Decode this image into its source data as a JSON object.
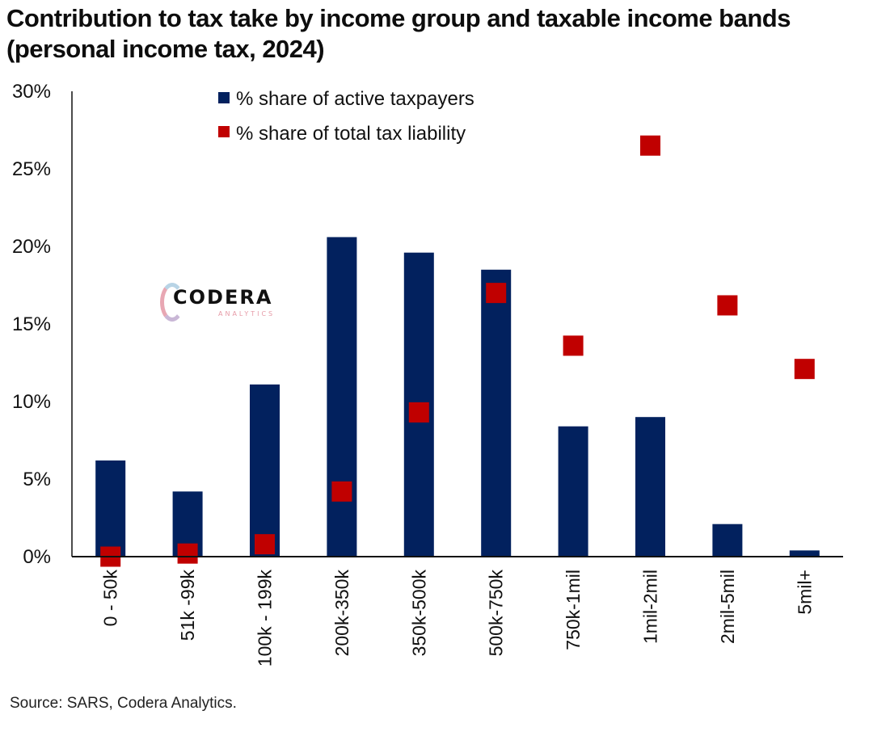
{
  "title": "Contribution to tax take by income group and taxable income bands (personal income tax, 2024)",
  "source": "Source: SARS, Codera Analytics.",
  "logo": {
    "name": "CODERA",
    "sub": "ANALYTICS"
  },
  "colors": {
    "bar": "#02215e",
    "marker": "#c00000",
    "axis": "#111111"
  },
  "chart_data": {
    "type": "bar",
    "title": "Contribution to tax take by income group and taxable income bands (personal income tax, 2024)",
    "xlabel": "",
    "ylabel": "",
    "ylim": [
      0,
      30
    ],
    "yticks": [
      0,
      5,
      10,
      15,
      20,
      25,
      30
    ],
    "ytick_labels": [
      "0%",
      "5%",
      "10%",
      "15%",
      "20%",
      "25%",
      "30%"
    ],
    "grid": false,
    "legend_position": "top-center",
    "categories": [
      "0 - 50k",
      "51k -99k",
      "100k - 199k",
      "200k-350k",
      "350k-500k",
      "500k-750k",
      "750k-1mil",
      "1mil-2mil",
      "2mil-5mil",
      "5mil+"
    ],
    "series": [
      {
        "name": "% share of active taxpayers",
        "type": "bar",
        "color": "#02215e",
        "values": [
          6.2,
          4.2,
          11.1,
          20.6,
          19.6,
          18.5,
          8.4,
          9.0,
          2.1,
          0.4
        ]
      },
      {
        "name": "% share of total tax liability",
        "type": "marker",
        "color": "#c00000",
        "values": [
          0.0,
          0.2,
          0.8,
          4.2,
          9.3,
          17.0,
          13.6,
          26.5,
          16.2,
          12.1
        ]
      }
    ]
  }
}
